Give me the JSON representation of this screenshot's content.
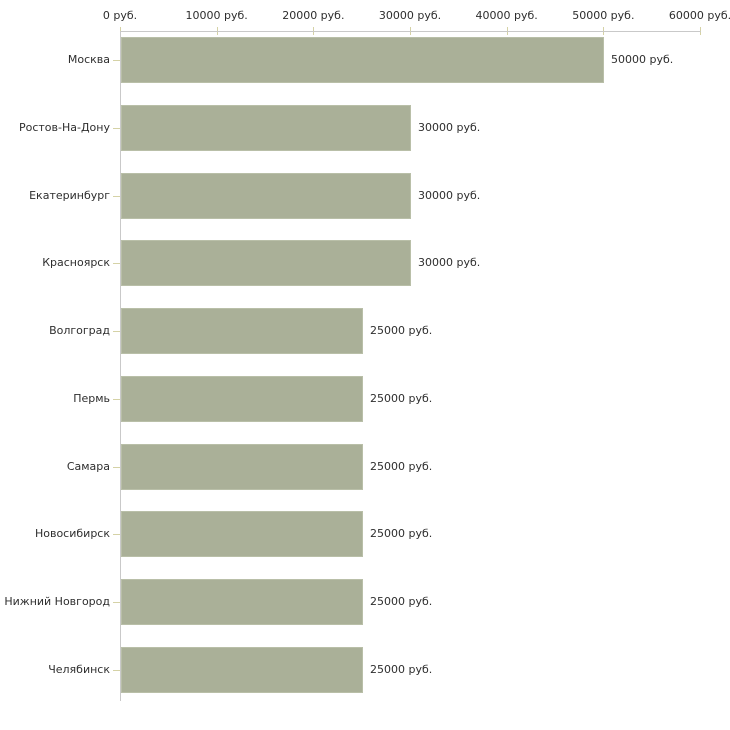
{
  "chart_data": {
    "type": "bar",
    "orientation": "horizontal",
    "title": "",
    "xlabel": "",
    "ylabel": "",
    "unit": "руб.",
    "categories": [
      "Москва",
      "Ростов-На-Дону",
      "Екатеринбург",
      "Красноярск",
      "Волгоград",
      "Пермь",
      "Самара",
      "Новосибирск",
      "Нижний Новгород",
      "Челябинск"
    ],
    "values": [
      50000,
      30000,
      30000,
      30000,
      25000,
      25000,
      25000,
      25000,
      25000,
      25000
    ],
    "value_labels": [
      "50000 руб.",
      "30000 руб.",
      "30000 руб.",
      "30000 руб.",
      "25000 руб.",
      "25000 руб.",
      "25000 руб.",
      "25000 руб.",
      "25000 руб.",
      "25000 руб."
    ],
    "x_ticks": [
      0,
      10000,
      20000,
      30000,
      40000,
      50000,
      60000
    ],
    "x_tick_labels": [
      "0 руб.",
      "10000 руб.",
      "20000 руб.",
      "30000 руб.",
      "40000 руб.",
      "50000 руб.",
      "60000 руб."
    ],
    "xlim": [
      0,
      60000
    ],
    "grid": false,
    "legend": "none",
    "axis_position": "top-left",
    "colors": {
      "bar_fill": "#aab098",
      "bar_border": "#b9bfa8",
      "axis_line": "#c9c9c9",
      "tick": "#d5d2a6",
      "text": "#2e2e2e",
      "background": "#ffffff"
    }
  }
}
